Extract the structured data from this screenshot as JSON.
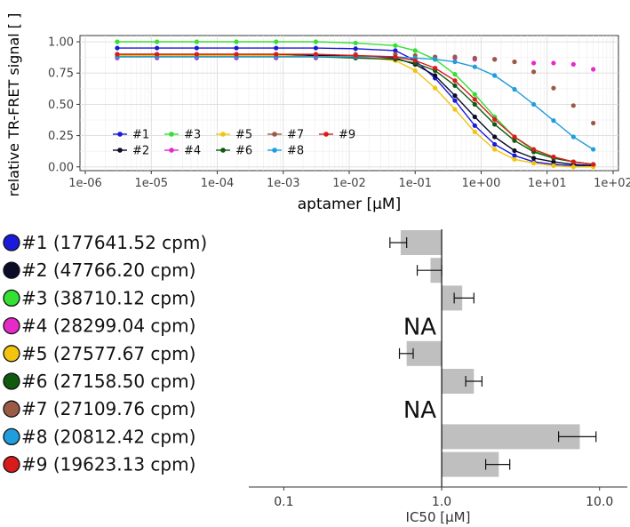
{
  "chart_data": [
    {
      "type": "line",
      "xlabel": "aptamer [µM]",
      "ylabel": "relative TR-FRET signal [ ]",
      "x_scale": "log",
      "xlim": [
        1e-06,
        100
      ],
      "ylim": [
        -0.03,
        1.05
      ],
      "x_ticks": [
        1e-06,
        1e-05,
        0.0001,
        0.001,
        0.01,
        0.1,
        1,
        10,
        100
      ],
      "x_tick_labels": [
        "1e-06",
        "1e-05",
        "1e-04",
        "1e-03",
        "1e-02",
        "1e-01",
        "1e+00",
        "1e+01",
        "1e+02"
      ],
      "y_ticks": [
        0,
        0.25,
        0.5,
        0.75,
        1
      ],
      "y_tick_labels": [
        "0.00",
        "0.25",
        "0.50",
        "0.75",
        "1.00"
      ],
      "grid": true,
      "legend_position": "bottom-left",
      "x": [
        3.05e-06,
        1.22e-05,
        4.88e-05,
        0.000195,
        0.00078,
        0.00312,
        0.0125,
        0.05,
        0.1,
        0.2,
        0.4,
        0.8,
        1.6,
        3.2,
        6.25,
        12.5,
        25,
        50
      ],
      "series": [
        {
          "name": "#1",
          "color": "#1a1adb",
          "fit": true,
          "values": [
            0.95,
            0.95,
            0.95,
            0.95,
            0.95,
            0.95,
            0.945,
            0.93,
            0.85,
            0.71,
            0.53,
            0.33,
            0.18,
            0.09,
            0.04,
            0.02,
            0.01,
            0.01
          ]
        },
        {
          "name": "#2",
          "color": "#0b0b2a",
          "fit": true,
          "values": [
            0.9,
            0.9,
            0.9,
            0.9,
            0.9,
            0.89,
            0.89,
            0.87,
            0.82,
            0.73,
            0.57,
            0.4,
            0.24,
            0.13,
            0.07,
            0.04,
            0.02,
            0.01
          ]
        },
        {
          "name": "#3",
          "color": "#33e033",
          "fit": true,
          "values": [
            1.0,
            1.0,
            1.0,
            1.0,
            1.0,
            1.0,
            0.99,
            0.97,
            0.93,
            0.86,
            0.74,
            0.58,
            0.4,
            0.24,
            0.13,
            0.07,
            0.04,
            0.02
          ]
        },
        {
          "name": "#4",
          "color": "#e52ac8",
          "fit": false,
          "values": [
            0.87,
            0.87,
            0.87,
            0.87,
            0.87,
            0.87,
            0.87,
            0.87,
            0.87,
            0.87,
            0.87,
            0.86,
            0.86,
            0.84,
            0.83,
            0.83,
            0.82,
            0.78
          ]
        },
        {
          "name": "#5",
          "color": "#f2c40d",
          "fit": true,
          "values": [
            0.89,
            0.89,
            0.89,
            0.89,
            0.89,
            0.88,
            0.88,
            0.85,
            0.77,
            0.63,
            0.46,
            0.28,
            0.14,
            0.06,
            0.03,
            0.01,
            0.0,
            0.0
          ]
        },
        {
          "name": "#6",
          "color": "#0e5a0e",
          "fit": true,
          "values": [
            0.88,
            0.88,
            0.88,
            0.88,
            0.88,
            0.88,
            0.87,
            0.86,
            0.83,
            0.77,
            0.65,
            0.5,
            0.34,
            0.21,
            0.12,
            0.07,
            0.04,
            0.02
          ]
        },
        {
          "name": "#7",
          "color": "#9a5a45",
          "fit": false,
          "values": [
            0.9,
            0.9,
            0.9,
            0.9,
            0.9,
            0.9,
            0.9,
            0.9,
            0.89,
            0.88,
            0.88,
            0.87,
            0.86,
            0.84,
            0.76,
            0.63,
            0.49,
            0.35
          ]
        },
        {
          "name": "#8",
          "color": "#1f9ddc",
          "fit": true,
          "values": [
            0.88,
            0.88,
            0.88,
            0.88,
            0.88,
            0.88,
            0.88,
            0.88,
            0.87,
            0.86,
            0.84,
            0.8,
            0.73,
            0.62,
            0.5,
            0.37,
            0.24,
            0.14
          ]
        },
        {
          "name": "#9",
          "color": "#d81c1c",
          "fit": true,
          "values": [
            0.9,
            0.9,
            0.9,
            0.9,
            0.9,
            0.9,
            0.89,
            0.88,
            0.85,
            0.79,
            0.69,
            0.54,
            0.38,
            0.24,
            0.14,
            0.08,
            0.04,
            0.02
          ]
        }
      ]
    },
    {
      "type": "bar",
      "orientation": "horizontal",
      "x_scale": "log",
      "xlim": [
        0.06,
        15
      ],
      "xlabel": "IC50 [µM]",
      "x_ticks": [
        0.1,
        1,
        10
      ],
      "x_tick_labels": [
        "0.1",
        "1.0",
        "10.0"
      ],
      "reference_line": 1,
      "categories": [
        "#1 (177641.52 cpm)",
        "#2 (47766.20 cpm)",
        "#3 (38710.12 cpm)",
        "#4 (28299.04 cpm)",
        "#5 (27577.67 cpm)",
        "#6 (27158.50 cpm)",
        "#7 (27109.76 cpm)",
        "#8 (20812.42 cpm)",
        "#9 (19623.13 cpm)"
      ],
      "marker_colors": [
        "#1a1adb",
        "#0b0b2a",
        "#33e033",
        "#e52ac8",
        "#f2c40d",
        "#0e5a0e",
        "#9a5a45",
        "#1f9ddc",
        "#d81c1c"
      ],
      "values": [
        0.55,
        0.85,
        1.35,
        null,
        0.6,
        1.6,
        null,
        7.5,
        2.3
      ],
      "error_low": [
        0.47,
        0.7,
        1.2,
        null,
        0.54,
        1.42,
        null,
        5.5,
        1.9
      ],
      "error_high": [
        0.6,
        1.0,
        1.6,
        null,
        0.66,
        1.8,
        null,
        9.5,
        2.7
      ],
      "na_label": "NA",
      "bar_color": "#bfbfbf"
    }
  ]
}
